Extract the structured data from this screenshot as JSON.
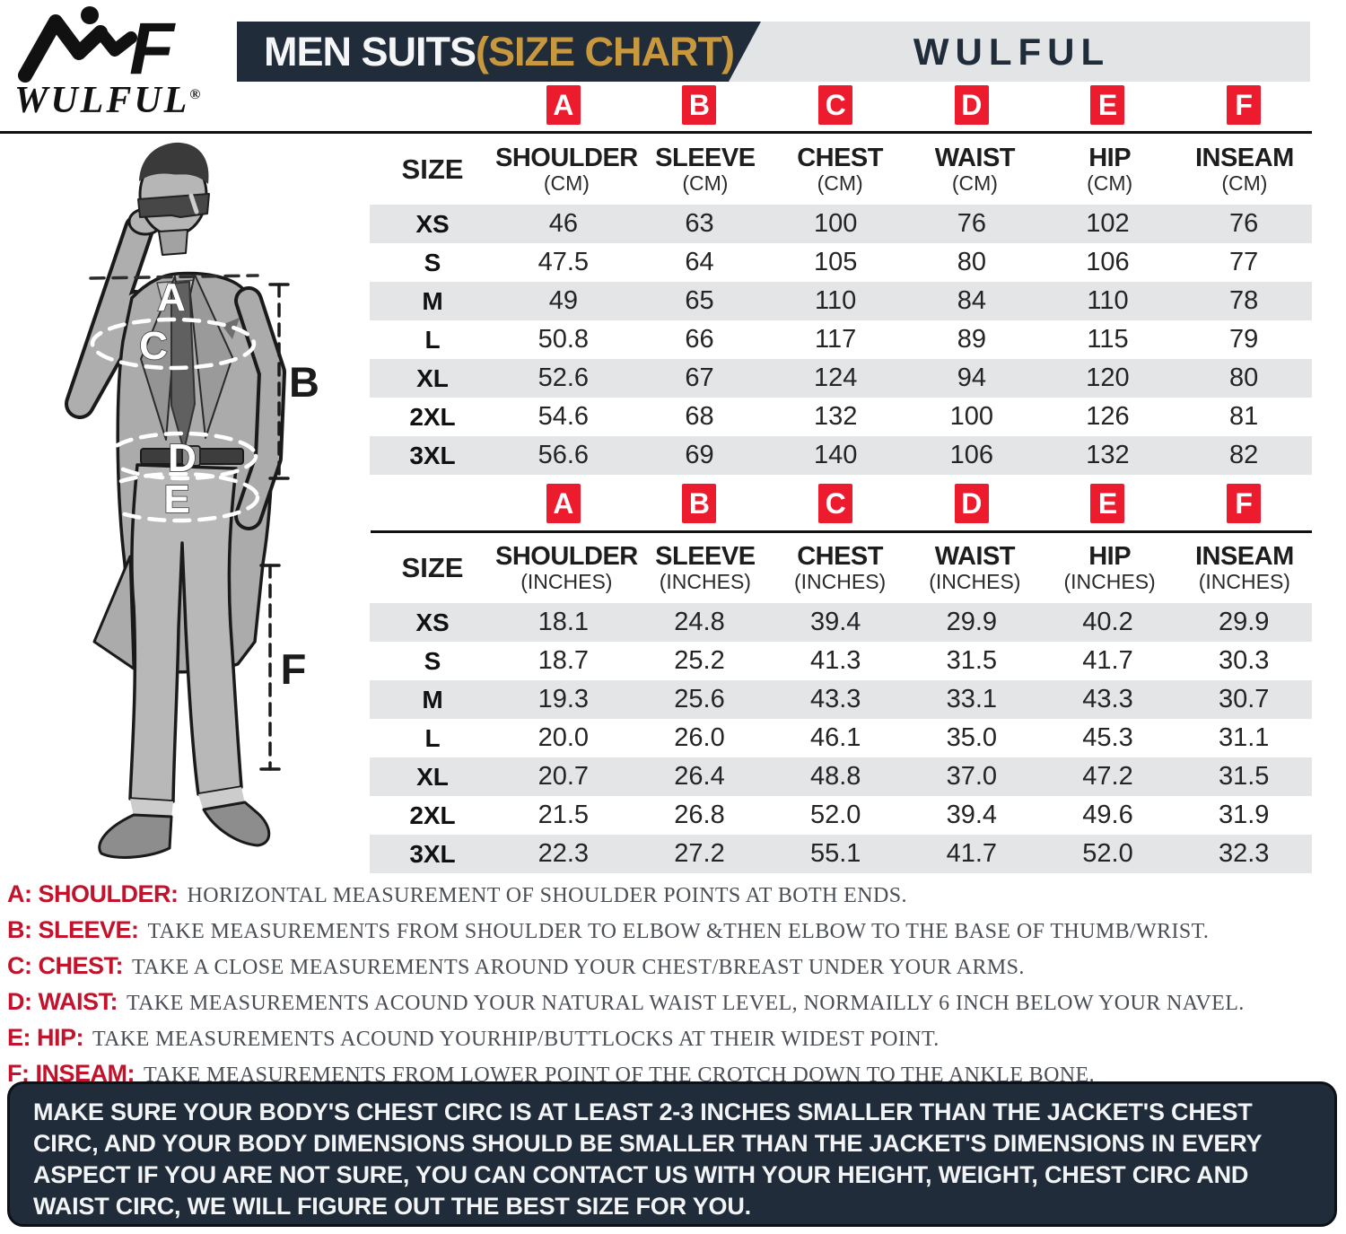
{
  "brand": {
    "wordmark": "WULFUL",
    "registered": "®"
  },
  "header": {
    "title_main": "MEN SUITS",
    "title_paren": "(SIZE CHART)",
    "brand_label": "WULFUL"
  },
  "badges": [
    "A",
    "B",
    "C",
    "D",
    "E",
    "F"
  ],
  "size_chart_cm": {
    "size_header": "SIZE",
    "unit_label": "(CM)",
    "columns": [
      "SHOULDER",
      "SLEEVE",
      "CHEST",
      "WAIST",
      "HIP",
      "INSEAM"
    ],
    "rows": [
      {
        "size": "XS",
        "values": [
          "46",
          "63",
          "100",
          "76",
          "102",
          "76"
        ]
      },
      {
        "size": "S",
        "values": [
          "47.5",
          "64",
          "105",
          "80",
          "106",
          "77"
        ]
      },
      {
        "size": "M",
        "values": [
          "49",
          "65",
          "110",
          "84",
          "110",
          "78"
        ]
      },
      {
        "size": "L",
        "values": [
          "50.8",
          "66",
          "117",
          "89",
          "115",
          "79"
        ]
      },
      {
        "size": "XL",
        "values": [
          "52.6",
          "67",
          "124",
          "94",
          "120",
          "80"
        ]
      },
      {
        "size": "2XL",
        "values": [
          "54.6",
          "68",
          "132",
          "100",
          "126",
          "81"
        ]
      },
      {
        "size": "3XL",
        "values": [
          "56.6",
          "69",
          "140",
          "106",
          "132",
          "82"
        ]
      }
    ]
  },
  "size_chart_inches": {
    "size_header": "SIZE",
    "unit_label": "(INCHES)",
    "columns": [
      "SHOULDER",
      "SLEEVE",
      "CHEST",
      "WAIST",
      "HIP",
      "INSEAM"
    ],
    "rows": [
      {
        "size": "XS",
        "values": [
          "18.1",
          "24.8",
          "39.4",
          "29.9",
          "40.2",
          "29.9"
        ]
      },
      {
        "size": "S",
        "values": [
          "18.7",
          "25.2",
          "41.3",
          "31.5",
          "41.7",
          "30.3"
        ]
      },
      {
        "size": "M",
        "values": [
          "19.3",
          "25.6",
          "43.3",
          "33.1",
          "43.3",
          "30.7"
        ]
      },
      {
        "size": "L",
        "values": [
          "20.0",
          "26.0",
          "46.1",
          "35.0",
          "45.3",
          "31.1"
        ]
      },
      {
        "size": "XL",
        "values": [
          "20.7",
          "26.4",
          "48.8",
          "37.0",
          "47.2",
          "31.5"
        ]
      },
      {
        "size": "2XL",
        "values": [
          "21.5",
          "26.8",
          "52.0",
          "39.4",
          "49.6",
          "31.9"
        ]
      },
      {
        "size": "3XL",
        "values": [
          "22.3",
          "27.2",
          "55.1",
          "41.7",
          "52.0",
          "32.3"
        ]
      }
    ]
  },
  "measure_notes": [
    {
      "label": "A: SHOULDER:",
      "text": "HORIZONTAL MEASUREMENT OF SHOULDER POINTS AT BOTH ENDS."
    },
    {
      "label": "B: SLEEVE:",
      "text": "TAKE MEASUREMENTS FROM SHOULDER TO ELBOW &THEN ELBOW TO THE BASE OF THUMB/WRIST."
    },
    {
      "label": "C: CHEST:",
      "text": "TAKE A CLOSE MEASUREMENTS AROUND YOUR CHEST/BREAST UNDER YOUR ARMS."
    },
    {
      "label": "D: WAIST:",
      "text": "TAKE MEASUREMENTS ACOUND YOUR NATURAL WAIST LEVEL, NORMAILLY 6 INCH BELOW YOUR NAVEL."
    },
    {
      "label": "E: HIP:",
      "text": "TAKE MEASUREMENTS ACOUND YOURHIP/BUTTLOCKS AT THEIR WIDEST POINT."
    },
    {
      "label": "F: INSEAM:",
      "text": "TAKE MEASUREMENTS FROM LOWER POINT OF THE CROTCH DOWN TO THE ANKLE BONE."
    }
  ],
  "footer_note": "MAKE SURE YOUR BODY'S CHEST CIRC IS AT LEAST 2-3 INCHES SMALLER THAN THE JACKET'S CHEST CIRC, AND YOUR BODY DIMENSIONS SHOULD BE SMALLER THAN THE JACKET'S DIMENSIONS IN EVERY ASPECT IF YOU ARE NOT SURE, YOU CAN CONTACT US WITH YOUR HEIGHT, WEIGHT, CHEST CIRC AND WAIST CIRC, WE WILL FIGURE OUT THE BEST SIZE FOR YOU.",
  "figure": {
    "labels": [
      "A",
      "B",
      "C",
      "D",
      "E",
      "F"
    ]
  },
  "colors": {
    "navy": "#212c3a",
    "gold": "#c8983f",
    "badge_red": "#ec1b2e",
    "row_gray": "#e4e5e7",
    "note_red": "#c3122b"
  }
}
